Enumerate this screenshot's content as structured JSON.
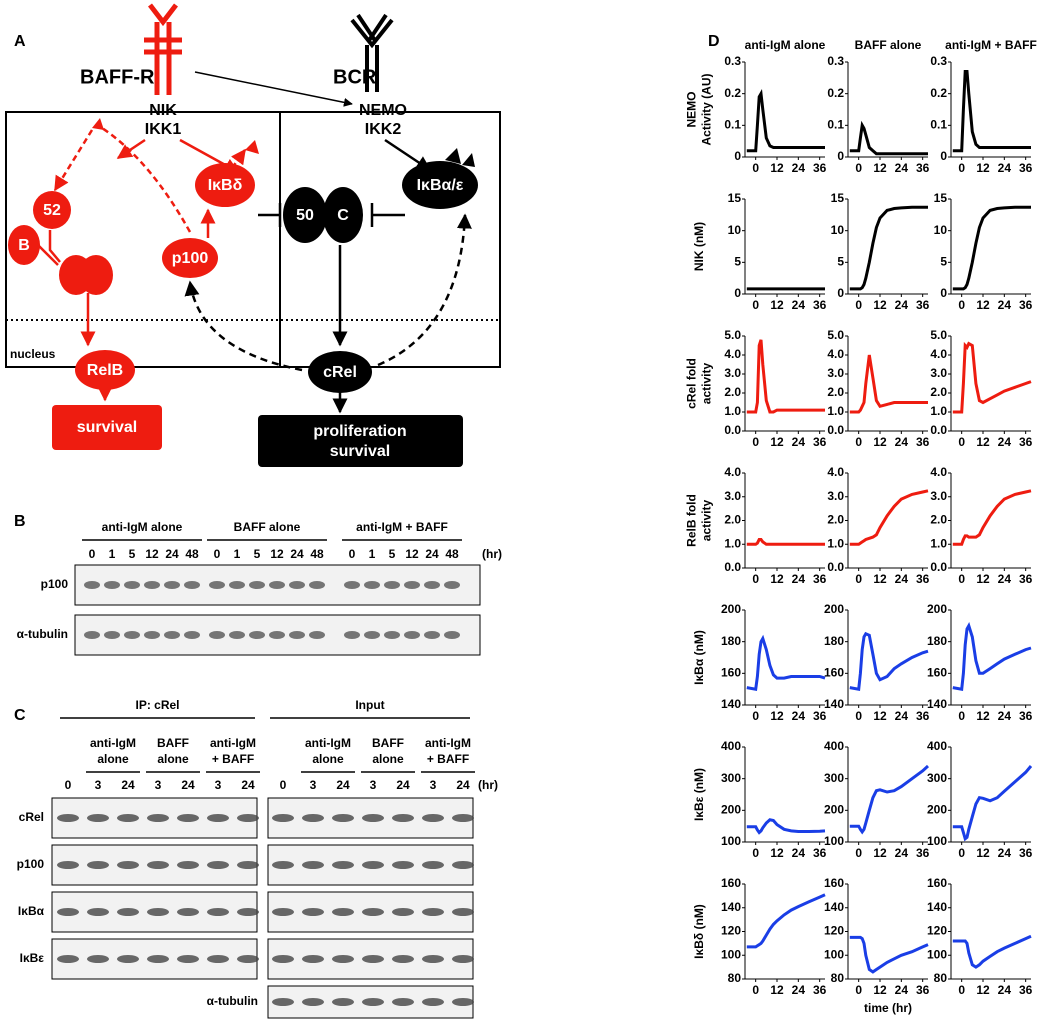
{
  "panel_a": {
    "label": "A",
    "baff_r": "BAFF-R",
    "bcr": "BCR",
    "nik": "NIK",
    "ikk1": "IKK1",
    "nemo": "NEMO",
    "ikk2": "IKK2",
    "p52": "52",
    "relb_b": "B",
    "ikbd": "IκBδ",
    "p50": "50",
    "crel_c": "C",
    "ikbae": "IκBα/ε",
    "p100": "p100",
    "nucleus": "nucleus",
    "relb": "RelB",
    "crel": "cRel",
    "survival": "survival",
    "proliferation": [
      "proliferation",
      "survival"
    ]
  },
  "panel_b": {
    "label": "B",
    "groups": [
      "anti-IgM alone",
      "BAFF alone",
      "anti-IgM + BAFF"
    ],
    "times": [
      0,
      1,
      5,
      12,
      24,
      48
    ],
    "unit": "(hr)",
    "rows": [
      "p100",
      "α-tubulin"
    ]
  },
  "panel_c": {
    "label": "C",
    "sections": [
      "IP: cRel",
      "Input"
    ],
    "groups": [
      [
        "anti-IgM",
        "alone"
      ],
      [
        "BAFF",
        "alone"
      ],
      [
        "anti-IgM",
        "+ BAFF"
      ]
    ],
    "times": [
      0,
      3,
      24,
      3,
      24,
      3,
      24
    ],
    "unit": "(hr)",
    "rows": [
      "cRel",
      "p100",
      "IκBα",
      "IκBε"
    ],
    "tubulin": "α-tubulin"
  },
  "panel_d": {
    "label": "D"
  },
  "chart_data": [
    {
      "type": "line",
      "title": "anti-IgM alone",
      "y_label": [
        "NEMO",
        "Activity (AU)"
      ],
      "color": "#000000",
      "x": [
        -5,
        0,
        1,
        2,
        3,
        4,
        6,
        8,
        10,
        12,
        16,
        20,
        24,
        30,
        36,
        39
      ],
      "values": [
        0.02,
        0.02,
        0.1,
        0.19,
        0.2,
        0.15,
        0.06,
        0.035,
        0.03,
        0.03,
        0.03,
        0.03,
        0.03,
        0.03,
        0.03,
        0.03
      ],
      "xlim": [
        -6,
        39
      ],
      "xticks": [
        0,
        12,
        24,
        36
      ],
      "ylim": [
        0,
        0.3
      ],
      "yticks": [
        0,
        0.1,
        0.2,
        0.3
      ]
    },
    {
      "type": "line",
      "title": "BAFF alone",
      "color": "#000000",
      "x": [
        -5,
        0,
        1,
        2,
        3,
        4,
        6,
        8,
        10,
        12,
        16,
        20,
        24,
        30,
        36,
        39
      ],
      "values": [
        0.02,
        0.02,
        0.06,
        0.1,
        0.09,
        0.07,
        0.03,
        0.02,
        0.01,
        0.01,
        0.01,
        0.01,
        0.01,
        0.01,
        0.01,
        0.01
      ],
      "xlim": [
        -6,
        39
      ],
      "xticks": [
        0,
        12,
        24,
        36
      ],
      "ylim": [
        0,
        0.3
      ],
      "yticks": [
        0,
        0.1,
        0.2,
        0.3
      ]
    },
    {
      "type": "line",
      "title": "anti-IgM + BAFF",
      "color": "#000000",
      "x": [
        -5,
        0,
        1,
        2,
        3,
        4,
        6,
        8,
        10,
        12,
        16,
        20,
        24,
        30,
        36,
        39
      ],
      "values": [
        0.02,
        0.02,
        0.15,
        0.27,
        0.27,
        0.2,
        0.08,
        0.04,
        0.03,
        0.03,
        0.03,
        0.03,
        0.03,
        0.03,
        0.03,
        0.03
      ],
      "xlim": [
        -6,
        39
      ],
      "xticks": [
        0,
        12,
        24,
        36
      ],
      "ylim": [
        0,
        0.3
      ],
      "yticks": [
        0,
        0.1,
        0.2,
        0.3
      ]
    },
    {
      "type": "line",
      "y_label": [
        "NIK (nM)"
      ],
      "color": "#000000",
      "x": [
        -5,
        0,
        1,
        2,
        3,
        4,
        6,
        8,
        10,
        12,
        16,
        20,
        24,
        30,
        36,
        39
      ],
      "values": [
        0.8,
        0.8,
        0.8,
        0.8,
        0.8,
        0.8,
        0.8,
        0.8,
        0.8,
        0.8,
        0.8,
        0.8,
        0.8,
        0.8,
        0.8,
        0.8
      ],
      "xlim": [
        -6,
        39
      ],
      "xticks": [
        0,
        12,
        24,
        36
      ],
      "ylim": [
        0,
        15
      ],
      "yticks": [
        0,
        5,
        10,
        15
      ]
    },
    {
      "type": "line",
      "color": "#000000",
      "x": [
        -5,
        0,
        1,
        2,
        3,
        4,
        6,
        8,
        10,
        12,
        16,
        20,
        24,
        30,
        36,
        39
      ],
      "values": [
        0.8,
        0.8,
        0.8,
        1,
        1.5,
        2.5,
        5,
        8,
        10.5,
        12,
        13.2,
        13.5,
        13.6,
        13.7,
        13.7,
        13.7
      ],
      "xlim": [
        -6,
        39
      ],
      "xticks": [
        0,
        12,
        24,
        36
      ],
      "ylim": [
        0,
        15
      ],
      "yticks": [
        0,
        5,
        10,
        15
      ]
    },
    {
      "type": "line",
      "color": "#000000",
      "x": [
        -5,
        0,
        1,
        2,
        3,
        4,
        6,
        8,
        10,
        12,
        16,
        20,
        24,
        30,
        36,
        39
      ],
      "values": [
        0.8,
        0.8,
        0.8,
        1,
        1.5,
        2.5,
        5,
        8,
        10.5,
        12,
        13.2,
        13.5,
        13.6,
        13.7,
        13.7,
        13.7
      ],
      "xlim": [
        -6,
        39
      ],
      "xticks": [
        0,
        12,
        24,
        36
      ],
      "ylim": [
        0,
        15
      ],
      "yticks": [
        0,
        5,
        10,
        15
      ]
    },
    {
      "type": "line",
      "y_label": [
        "cRel fold",
        "activity"
      ],
      "color": "#ee1c10",
      "x": [
        -5,
        0,
        1,
        2,
        3,
        4,
        6,
        8,
        10,
        12,
        16,
        20,
        24,
        30,
        36,
        39
      ],
      "values": [
        1,
        1,
        1.5,
        4.5,
        4.8,
        3.5,
        1.6,
        1,
        1,
        1.1,
        1.1,
        1.1,
        1.1,
        1.1,
        1.1,
        1.1
      ],
      "xlim": [
        -6,
        39
      ],
      "xticks": [
        0,
        12,
        24,
        36
      ],
      "ylim": [
        0,
        5
      ],
      "yticks": [
        {
          "value": 0,
          "label": "0.0"
        },
        {
          "value": 1,
          "label": "1.0"
        },
        {
          "value": 2,
          "label": "2.0"
        },
        {
          "value": 3,
          "label": "3.0"
        },
        {
          "value": 4,
          "label": "4.0"
        },
        {
          "value": 5,
          "label": "5.0"
        }
      ]
    },
    {
      "type": "line",
      "color": "#ee1c10",
      "x": [
        -5,
        0,
        1,
        2,
        3,
        4,
        6,
        8,
        10,
        12,
        16,
        20,
        24,
        30,
        36,
        39
      ],
      "values": [
        1,
        1,
        1.1,
        1.3,
        1.5,
        2.5,
        4,
        2.8,
        1.6,
        1.3,
        1.4,
        1.5,
        1.5,
        1.5,
        1.5,
        1.5
      ],
      "xlim": [
        -6,
        39
      ],
      "xticks": [
        0,
        12,
        24,
        36
      ],
      "ylim": [
        0,
        5
      ],
      "yticks": [
        {
          "value": 0,
          "label": "0.0"
        },
        {
          "value": 1,
          "label": "1.0"
        },
        {
          "value": 2,
          "label": "2.0"
        },
        {
          "value": 3,
          "label": "3.0"
        },
        {
          "value": 4,
          "label": "4.0"
        },
        {
          "value": 5,
          "label": "5.0"
        }
      ]
    },
    {
      "type": "line",
      "color": "#ee1c10",
      "x": [
        -5,
        0,
        1,
        2,
        3,
        4,
        6,
        8,
        10,
        12,
        16,
        20,
        24,
        30,
        36,
        39
      ],
      "values": [
        1,
        1,
        2.5,
        4.5,
        4.4,
        4.6,
        4.5,
        2.5,
        1.6,
        1.5,
        1.7,
        1.9,
        2.1,
        2.3,
        2.5,
        2.6
      ],
      "xlim": [
        -6,
        39
      ],
      "xticks": [
        0,
        12,
        24,
        36
      ],
      "ylim": [
        0,
        5
      ],
      "yticks": [
        {
          "value": 0,
          "label": "0.0"
        },
        {
          "value": 1,
          "label": "1.0"
        },
        {
          "value": 2,
          "label": "2.0"
        },
        {
          "value": 3,
          "label": "3.0"
        },
        {
          "value": 4,
          "label": "4.0"
        },
        {
          "value": 5,
          "label": "5.0"
        }
      ]
    },
    {
      "type": "line",
      "y_label": [
        "RelB fold",
        "activity"
      ],
      "color": "#ee1c10",
      "x": [
        -5,
        0,
        1,
        2,
        3,
        4,
        6,
        8,
        10,
        12,
        16,
        20,
        24,
        30,
        36,
        39
      ],
      "values": [
        1,
        1,
        1.05,
        1.2,
        1.2,
        1.1,
        1,
        1,
        1,
        1,
        1,
        1,
        1,
        1,
        1,
        1
      ],
      "xlim": [
        -6,
        39
      ],
      "xticks": [
        0,
        12,
        24,
        36
      ],
      "ylim": [
        0,
        4
      ],
      "yticks": [
        {
          "value": 0,
          "label": "0.0"
        },
        {
          "value": 1,
          "label": "1.0"
        },
        {
          "value": 2,
          "label": "2.0"
        },
        {
          "value": 3,
          "label": "3.0"
        },
        {
          "value": 4,
          "label": "4.0"
        }
      ]
    },
    {
      "type": "line",
      "color": "#ee1c10",
      "x": [
        -5,
        0,
        1,
        2,
        3,
        4,
        6,
        8,
        10,
        12,
        16,
        20,
        24,
        30,
        36,
        39
      ],
      "values": [
        1,
        1,
        1.05,
        1.1,
        1.15,
        1.2,
        1.25,
        1.3,
        1.4,
        1.7,
        2.2,
        2.6,
        2.9,
        3.1,
        3.2,
        3.25
      ],
      "xlim": [
        -6,
        39
      ],
      "xticks": [
        0,
        12,
        24,
        36
      ],
      "ylim": [
        0,
        4
      ],
      "yticks": [
        {
          "value": 0,
          "label": "0.0"
        },
        {
          "value": 1,
          "label": "1.0"
        },
        {
          "value": 2,
          "label": "2.0"
        },
        {
          "value": 3,
          "label": "3.0"
        },
        {
          "value": 4,
          "label": "4.0"
        }
      ]
    },
    {
      "type": "line",
      "color": "#ee1c10",
      "x": [
        -5,
        0,
        1,
        2,
        3,
        4,
        6,
        8,
        10,
        12,
        16,
        20,
        24,
        30,
        36,
        39
      ],
      "values": [
        1,
        1,
        1.2,
        1.35,
        1.35,
        1.3,
        1.3,
        1.3,
        1.4,
        1.7,
        2.2,
        2.6,
        2.9,
        3.1,
        3.2,
        3.25
      ],
      "xlim": [
        -6,
        39
      ],
      "xticks": [
        0,
        12,
        24,
        36
      ],
      "ylim": [
        0,
        4
      ],
      "yticks": [
        {
          "value": 0,
          "label": "0.0"
        },
        {
          "value": 1,
          "label": "1.0"
        },
        {
          "value": 2,
          "label": "2.0"
        },
        {
          "value": 3,
          "label": "3.0"
        },
        {
          "value": 4,
          "label": "4.0"
        }
      ]
    },
    {
      "type": "line",
      "y_label": [
        "IκBα (nM)"
      ],
      "color": "#1a3ee6",
      "x": [
        -5,
        0,
        1,
        2,
        3,
        4,
        6,
        8,
        10,
        12,
        16,
        20,
        24,
        30,
        36,
        39
      ],
      "values": [
        151,
        150,
        158,
        172,
        180,
        182,
        175,
        165,
        159,
        157,
        157,
        158,
        158,
        158,
        158,
        157
      ],
      "xlim": [
        -6,
        39
      ],
      "xticks": [
        0,
        12,
        24,
        36
      ],
      "ylim": [
        140,
        200
      ],
      "yticks": [
        140,
        160,
        180,
        200
      ]
    },
    {
      "type": "line",
      "color": "#1a3ee6",
      "x": [
        -5,
        0,
        1,
        2,
        3,
        4,
        6,
        8,
        10,
        12,
        16,
        20,
        24,
        30,
        36,
        39
      ],
      "values": [
        151,
        150,
        160,
        175,
        183,
        185,
        184,
        172,
        160,
        156,
        158,
        163,
        166,
        170,
        173,
        174
      ],
      "xlim": [
        -6,
        39
      ],
      "xticks": [
        0,
        12,
        24,
        36
      ],
      "ylim": [
        140,
        200
      ],
      "yticks": [
        140,
        160,
        180,
        200
      ]
    },
    {
      "type": "line",
      "color": "#1a3ee6",
      "x": [
        -5,
        0,
        1,
        2,
        3,
        4,
        6,
        8,
        10,
        12,
        16,
        20,
        24,
        30,
        36,
        39
      ],
      "values": [
        151,
        150,
        160,
        178,
        188,
        190,
        183,
        168,
        160,
        160,
        163,
        166,
        169,
        172,
        175,
        176
      ],
      "xlim": [
        -6,
        39
      ],
      "xticks": [
        0,
        12,
        24,
        36
      ],
      "ylim": [
        140,
        200
      ],
      "yticks": [
        140,
        160,
        180,
        200
      ]
    },
    {
      "type": "line",
      "y_label": [
        "IκBε (nM)"
      ],
      "color": "#1a3ee6",
      "x": [
        -5,
        0,
        1,
        2,
        3,
        4,
        6,
        8,
        10,
        12,
        16,
        20,
        24,
        30,
        36,
        39
      ],
      "values": [
        148,
        148,
        138,
        130,
        135,
        145,
        160,
        170,
        168,
        155,
        140,
        135,
        133,
        133,
        134,
        135
      ],
      "xlim": [
        -6,
        39
      ],
      "xticks": [
        0,
        12,
        24,
        36
      ],
      "ylim": [
        100,
        400
      ],
      "yticks": [
        100,
        200,
        300,
        400
      ]
    },
    {
      "type": "line",
      "color": "#1a3ee6",
      "x": [
        -5,
        0,
        1,
        2,
        3,
        4,
        6,
        8,
        10,
        12,
        16,
        20,
        24,
        30,
        36,
        39
      ],
      "values": [
        150,
        150,
        140,
        132,
        140,
        160,
        200,
        240,
        262,
        265,
        258,
        262,
        275,
        300,
        325,
        340
      ],
      "xlim": [
        -6,
        39
      ],
      "xticks": [
        0,
        12,
        24,
        36
      ],
      "ylim": [
        100,
        400
      ],
      "yticks": [
        100,
        200,
        300,
        400
      ]
    },
    {
      "type": "line",
      "color": "#1a3ee6",
      "x": [
        -5,
        0,
        1,
        2,
        3,
        4,
        6,
        8,
        10,
        12,
        16,
        20,
        24,
        30,
        36,
        39
      ],
      "values": [
        148,
        148,
        130,
        110,
        115,
        140,
        180,
        220,
        240,
        238,
        230,
        240,
        260,
        290,
        320,
        340
      ],
      "xlim": [
        -6,
        39
      ],
      "xticks": [
        0,
        12,
        24,
        36
      ],
      "ylim": [
        100,
        400
      ],
      "yticks": [
        100,
        200,
        300,
        400
      ]
    },
    {
      "type": "line",
      "y_label": [
        "IκBδ (nM)"
      ],
      "color": "#1a3ee6",
      "x": [
        -5,
        0,
        1,
        2,
        3,
        4,
        6,
        8,
        10,
        12,
        16,
        20,
        24,
        30,
        36,
        39
      ],
      "values": [
        107,
        107,
        108,
        109,
        110,
        112,
        117,
        122,
        126,
        129,
        134,
        138,
        141,
        145,
        149,
        151
      ],
      "xlim": [
        -6,
        39
      ],
      "xticks": [
        0,
        12,
        24,
        36
      ],
      "ylim": [
        80,
        160
      ],
      "yticks": [
        80,
        100,
        120,
        140,
        160
      ]
    },
    {
      "type": "line",
      "x_label": "time (hr)",
      "color": "#1a3ee6",
      "x": [
        -5,
        0,
        1,
        2,
        3,
        4,
        6,
        8,
        10,
        12,
        16,
        20,
        24,
        30,
        36,
        39
      ],
      "values": [
        115,
        115,
        115,
        114,
        110,
        100,
        88,
        86,
        88,
        90,
        94,
        97,
        100,
        103,
        107,
        109
      ],
      "xlim": [
        -6,
        39
      ],
      "xticks": [
        0,
        12,
        24,
        36
      ],
      "ylim": [
        80,
        160
      ],
      "yticks": [
        80,
        100,
        120,
        140,
        160
      ]
    },
    {
      "type": "line",
      "color": "#1a3ee6",
      "x": [
        -5,
        0,
        1,
        2,
        3,
        4,
        6,
        8,
        10,
        12,
        16,
        20,
        24,
        30,
        36,
        39
      ],
      "values": [
        112,
        112,
        112,
        112,
        110,
        102,
        92,
        90,
        92,
        95,
        99,
        103,
        106,
        110,
        114,
        116
      ],
      "xlim": [
        -6,
        39
      ],
      "xticks": [
        0,
        12,
        24,
        36
      ],
      "ylim": [
        80,
        160
      ],
      "yticks": [
        80,
        100,
        120,
        140,
        160
      ]
    }
  ]
}
